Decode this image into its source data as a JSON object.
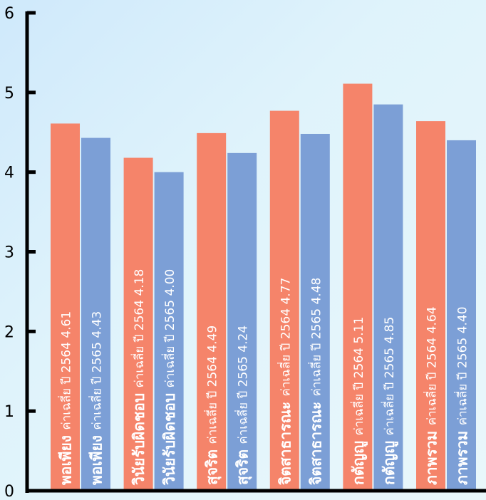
{
  "chart_data": {
    "type": "bar",
    "title": "",
    "xlabel": "",
    "ylabel": "",
    "ylim": [
      0,
      6
    ],
    "yticks": [
      0,
      1,
      2,
      3,
      4,
      5,
      6
    ],
    "categories": [
      "พอเพียง",
      "วินัยรับผิดชอบ",
      "สุจริต",
      "จิตสาธารณะ",
      "กตัญญู",
      "ภาพรวม"
    ],
    "series": [
      {
        "label_prefix": "ค่าเฉลี่ย ปี 2564",
        "color": "#f5846a",
        "values": [
          4.61,
          4.18,
          4.49,
          4.77,
          5.11,
          4.64
        ],
        "value_labels": [
          "4.61",
          "4.18",
          "4.49",
          "4.77",
          "5.11",
          "4.64"
        ]
      },
      {
        "label_prefix": "ค่าเฉลี่ย ปี 2565",
        "color": "#7c9fd6",
        "values": [
          4.43,
          4.0,
          4.24,
          4.48,
          4.85,
          4.4
        ],
        "value_labels": [
          "4.43",
          "4.00",
          "4.24",
          "4.48",
          "4.85",
          "4.40"
        ]
      }
    ],
    "grid": false,
    "legend": "none"
  }
}
